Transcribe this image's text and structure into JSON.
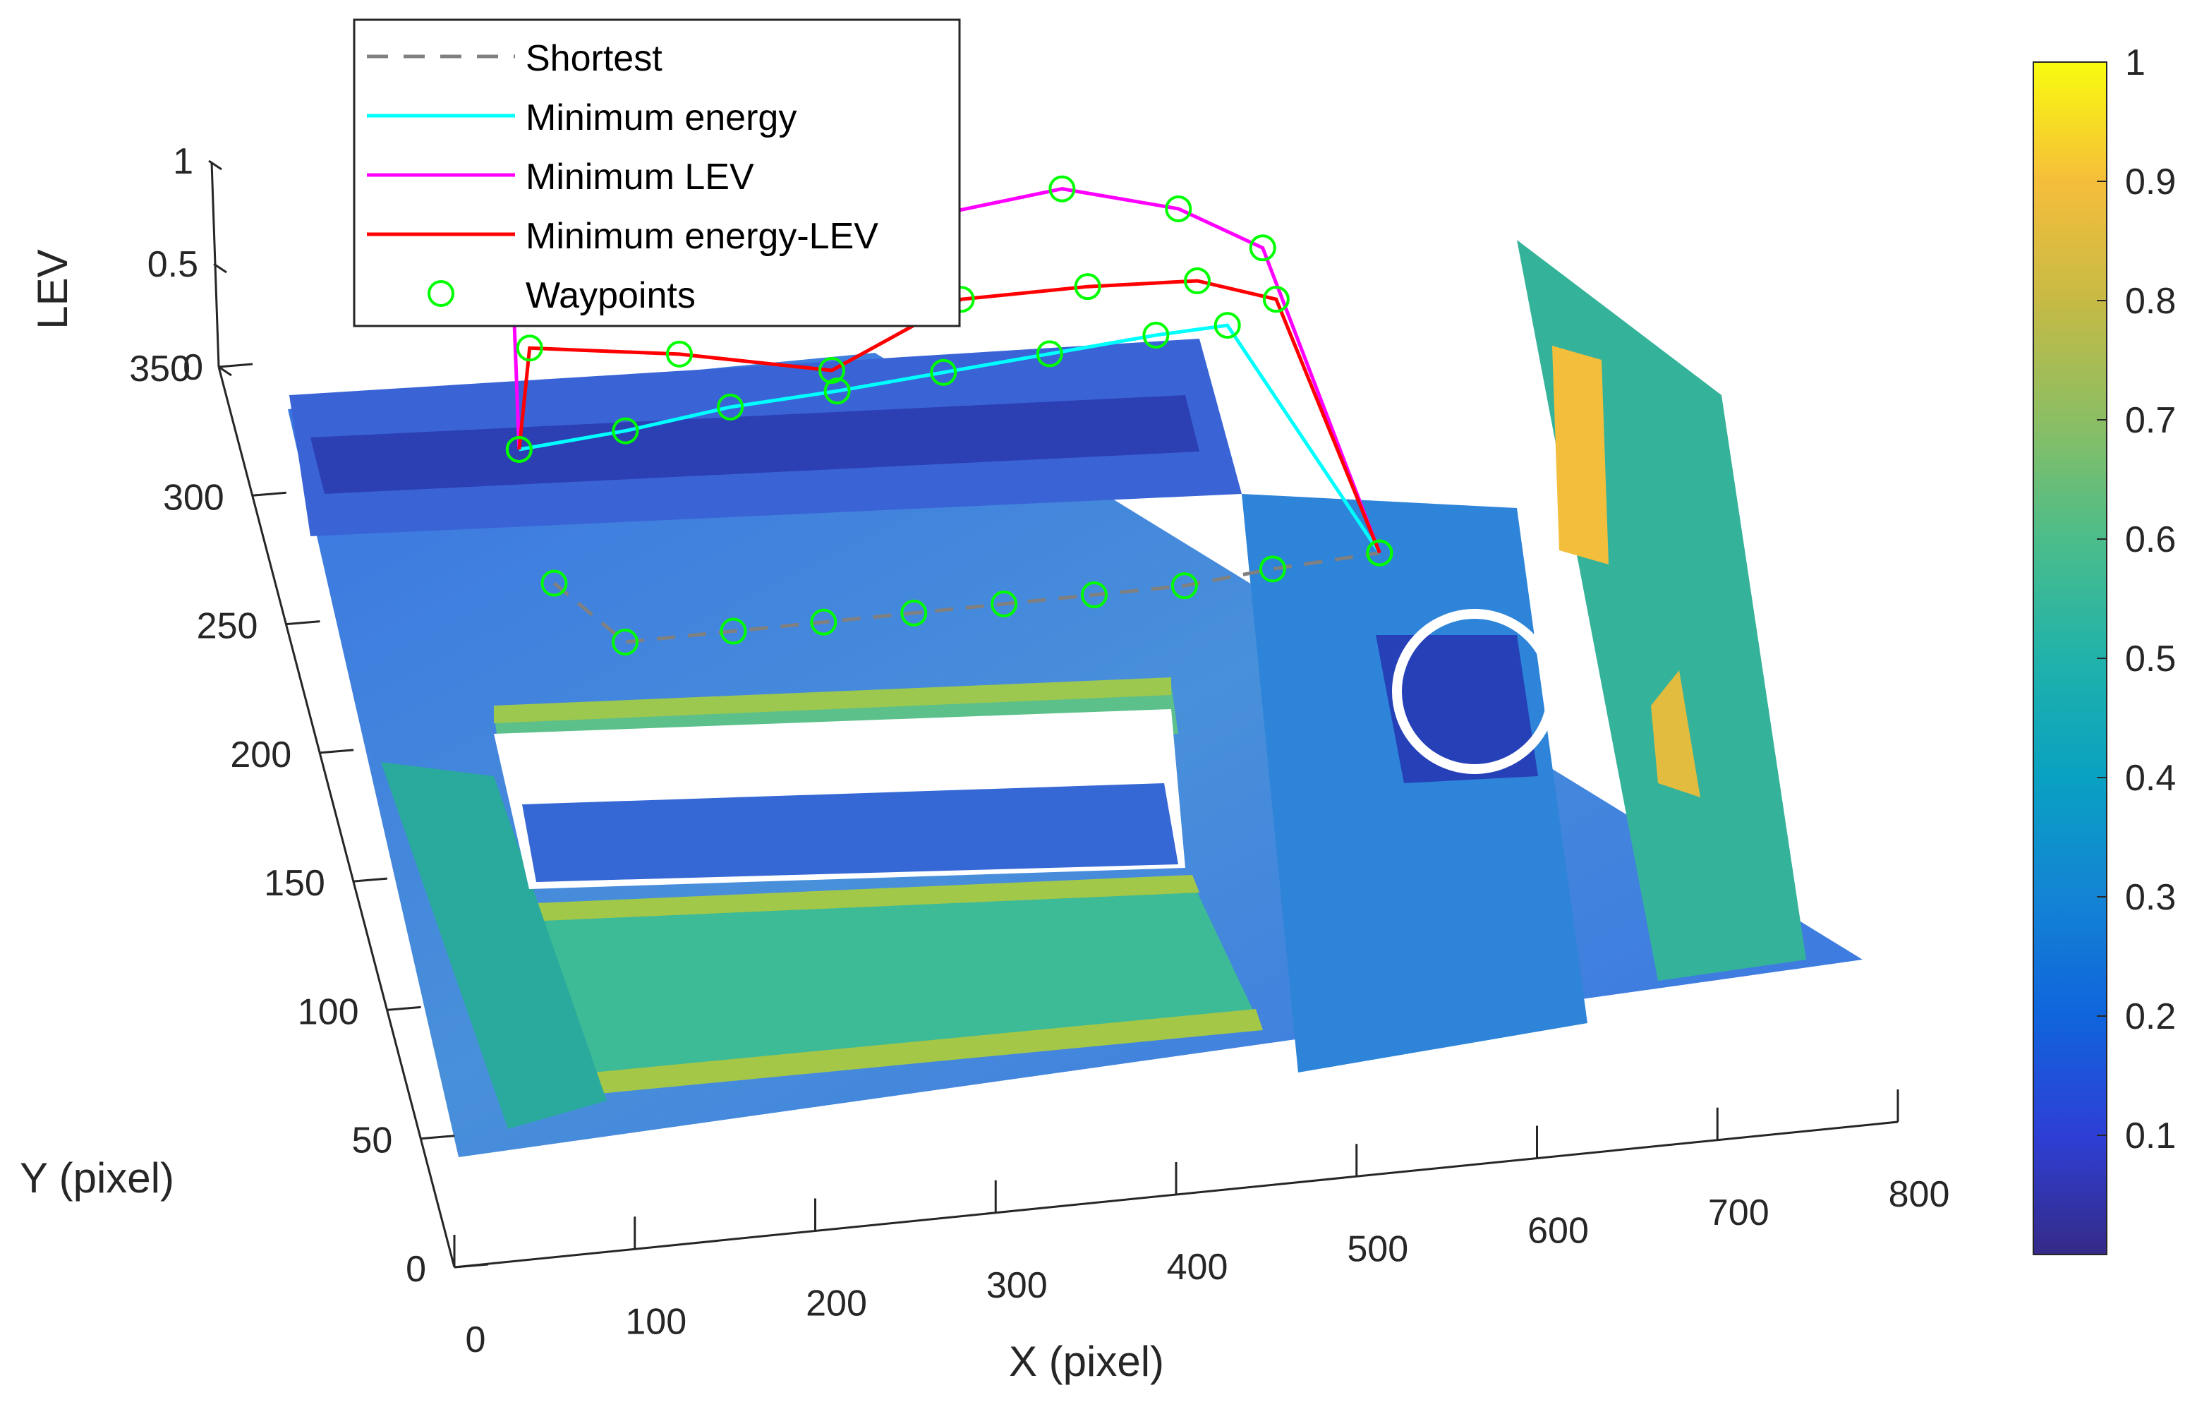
{
  "chart_data": {
    "type": "surface",
    "xlabel": "X (pixel)",
    "ylabel": "Y (pixel)",
    "zlabel": "LEV",
    "x_ticks": [
      "0",
      "100",
      "200",
      "300",
      "400",
      "500",
      "600",
      "700",
      "800"
    ],
    "y_ticks": [
      "0",
      "50",
      "100",
      "150",
      "200",
      "250",
      "300",
      "350"
    ],
    "z_ticks": [
      "0",
      "0.5",
      "1"
    ],
    "xlim": [
      0,
      800
    ],
    "ylim": [
      0,
      350
    ],
    "zlim": [
      0,
      1
    ],
    "colorbar": {
      "colormap": "parula",
      "ticks": [
        "0.1",
        "0.2",
        "0.3",
        "0.4",
        "0.5",
        "0.6",
        "0.7",
        "0.8",
        "0.9",
        "1"
      ],
      "min": 0,
      "max": 1
    },
    "legend": {
      "placement": "top-left",
      "entries": [
        {
          "label": "Shortest",
          "color": "#808080",
          "style": "dashed"
        },
        {
          "label": "Minimum energy",
          "color": "#00ffff",
          "style": "solid"
        },
        {
          "label": "Minimum LEV",
          "color": "#ff00ff",
          "style": "solid"
        },
        {
          "label": "Minimum energy-LEV",
          "color": "#ff0000",
          "style": "solid"
        },
        {
          "label": "Waypoints",
          "color": "#00ff00",
          "style": "marker-circle"
        }
      ]
    },
    "series": [
      {
        "name": "Shortest",
        "points": [
          [
            40,
            200
          ],
          [
            70,
            175
          ],
          [
            130,
            175
          ],
          [
            180,
            175
          ],
          [
            230,
            175
          ],
          [
            280,
            175
          ],
          [
            330,
            175
          ],
          [
            380,
            175
          ],
          [
            430,
            178
          ],
          [
            490,
            180
          ]
        ]
      },
      {
        "name": "Minimum energy",
        "points": [
          [
            40,
            252
          ],
          [
            100,
            255
          ],
          [
            160,
            260
          ],
          [
            220,
            262
          ],
          [
            280,
            265
          ],
          [
            340,
            268
          ],
          [
            400,
            271
          ],
          [
            440,
            272
          ],
          [
            490,
            180
          ]
        ]
      },
      {
        "name": "Minimum LEV",
        "points": [
          [
            40,
            252
          ],
          [
            60,
            315
          ],
          [
            140,
            308
          ],
          [
            220,
            310
          ],
          [
            300,
            325
          ],
          [
            370,
            330
          ],
          [
            430,
            318
          ],
          [
            470,
            300
          ],
          [
            490,
            180
          ]
        ]
      },
      {
        "name": "Minimum energy-LEV",
        "points": [
          [
            40,
            252
          ],
          [
            60,
            290
          ],
          [
            140,
            282
          ],
          [
            220,
            270
          ],
          [
            300,
            292
          ],
          [
            370,
            292
          ],
          [
            430,
            290
          ],
          [
            470,
            280
          ],
          [
            490,
            180
          ]
        ]
      }
    ],
    "grid": false
  }
}
